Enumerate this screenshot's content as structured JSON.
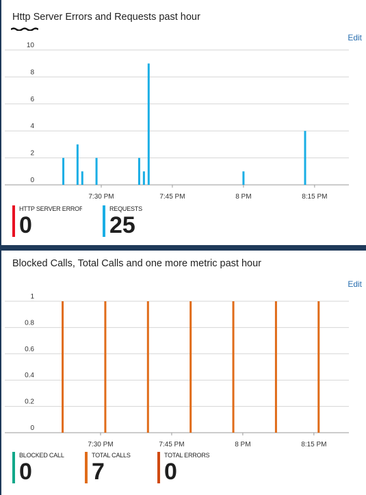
{
  "panel1": {
    "title": "Http Server Errors and Requests past hour",
    "edit_label": "Edit",
    "legend": [
      {
        "name": "HTTP SERVER ERRORS",
        "value": "0",
        "color": "#e81123"
      },
      {
        "name": "REQUESTS",
        "value": "25",
        "color": "#1aaee5"
      }
    ]
  },
  "panel2": {
    "title": "Blocked Calls, Total Calls and one more metric past hour",
    "edit_label": "Edit",
    "legend": [
      {
        "name": "BLOCKED CALLS",
        "value": "0",
        "color": "#12a88a"
      },
      {
        "name": "TOTAL CALLS",
        "value": "7",
        "color": "#e06c1a"
      },
      {
        "name": "TOTAL ERRORS",
        "value": "0",
        "color": "#d04a12"
      }
    ]
  },
  "chart_data": [
    {
      "type": "bar",
      "y_ticks": [
        "10",
        "8",
        "6",
        "4",
        "2",
        "0"
      ],
      "x_ticks": [
        "7:30 PM",
        "7:45 PM",
        "8 PM",
        "8:15 PM"
      ],
      "ylim": [
        0,
        10
      ],
      "grid": true,
      "series": [
        {
          "name": "REQUESTS",
          "color": "#1aaee5",
          "points": [
            {
              "x": "7:22 PM",
              "y": 2
            },
            {
              "x": "7:25 PM",
              "y": 3
            },
            {
              "x": "7:26 PM",
              "y": 1
            },
            {
              "x": "7:29 PM",
              "y": 2
            },
            {
              "x": "7:38 PM",
              "y": 2
            },
            {
              "x": "7:39 PM",
              "y": 1
            },
            {
              "x": "7:40 PM",
              "y": 9
            },
            {
              "x": "8:00 PM",
              "y": 1
            },
            {
              "x": "8:13 PM",
              "y": 4
            }
          ]
        }
      ]
    },
    {
      "type": "bar",
      "y_ticks": [
        "1",
        "0.8",
        "0.6",
        "0.4",
        "0.2",
        "0"
      ],
      "x_ticks": [
        "7:30 PM",
        "7:45 PM",
        "8 PM",
        "8:15 PM"
      ],
      "ylim": [
        0,
        1
      ],
      "grid": true,
      "series": [
        {
          "name": "TOTAL CALLS",
          "color": "#e06c1a",
          "points": [
            {
              "x": "7:22 PM",
              "y": 1
            },
            {
              "x": "7:31 PM",
              "y": 1
            },
            {
              "x": "7:40 PM",
              "y": 1
            },
            {
              "x": "7:49 PM",
              "y": 1
            },
            {
              "x": "7:58 PM",
              "y": 1
            },
            {
              "x": "8:07 PM",
              "y": 1
            },
            {
              "x": "8:16 PM",
              "y": 1
            }
          ]
        }
      ]
    }
  ]
}
